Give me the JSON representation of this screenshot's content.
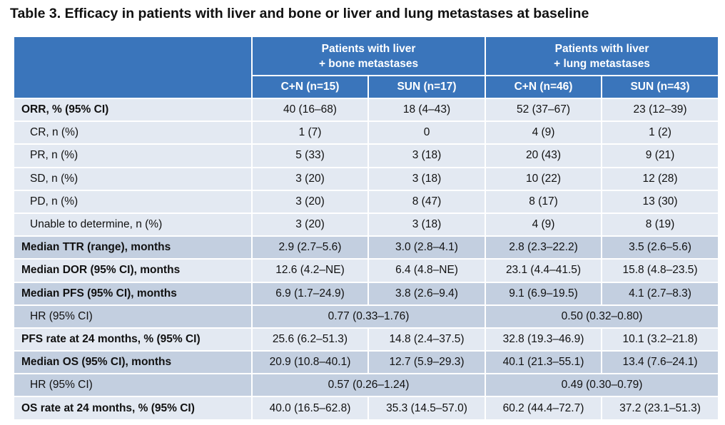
{
  "title": "Table 3. Efficacy in patients with liver and bone or liver and lung metastases at baseline",
  "header": {
    "group1_line1": "Patients with liver",
    "group1_line2": "+ bone metastases",
    "group2_line1": "Patients with liver",
    "group2_line2": "+ lung metastases",
    "columns": [
      "C+N (n=15)",
      "SUN (n=17)",
      "C+N (n=46)",
      "SUN (n=43)"
    ]
  },
  "rows": [
    {
      "label": "ORR, % (95% CI)",
      "values": [
        "40 (16–68)",
        "18 (4–43)",
        "52 (37–67)",
        "23 (12–39)"
      ]
    },
    {
      "label": "CR, n (%)",
      "values": [
        "1 (7)",
        "0",
        "4 (9)",
        "1 (2)"
      ]
    },
    {
      "label": "PR, n (%)",
      "values": [
        "5 (33)",
        "3 (18)",
        "20 (43)",
        "9 (21)"
      ]
    },
    {
      "label": "SD, n (%)",
      "values": [
        "3 (20)",
        "3 (18)",
        "10 (22)",
        "12 (28)"
      ]
    },
    {
      "label": "PD, n (%)",
      "values": [
        "3 (20)",
        "8 (47)",
        "8 (17)",
        "13 (30)"
      ]
    },
    {
      "label": "Unable to determine, n (%)",
      "values": [
        "3 (20)",
        "3 (18)",
        "4 (9)",
        "8 (19)"
      ]
    },
    {
      "label": "Median TTR (range), months",
      "values": [
        "2.9 (2.7–5.6)",
        "3.0 (2.8–4.1)",
        "2.8 (2.3–22.2)",
        "3.5 (2.6–5.6)"
      ]
    },
    {
      "label": "Median DOR (95% CI), months",
      "values": [
        "12.6 (4.2–NE)",
        "6.4 (4.8–NE)",
        "23.1 (4.4–41.5)",
        "15.8 (4.8–23.5)"
      ]
    },
    {
      "label": "Median PFS (95% CI), months",
      "values": [
        "6.9 (1.7–24.9)",
        "3.8 (2.6–9.4)",
        "9.1 (6.9–19.5)",
        "4.1 (2.7–8.3)"
      ]
    },
    {
      "label": "HR (95% CI)",
      "values": [
        "0.77 (0.33–1.76)",
        "0.50 (0.32–0.80)"
      ]
    },
    {
      "label": "PFS rate at 24 months, % (95% CI)",
      "values": [
        "25.6 (6.2–51.3)",
        "14.8 (2.4–37.5)",
        "32.8 (19.3–46.9)",
        "10.1 (3.2–21.8)"
      ]
    },
    {
      "label": "Median OS (95% CI), months",
      "values": [
        "20.9 (10.8–40.1)",
        "12.7 (5.9–29.3)",
        "40.1 (21.3–55.1)",
        "13.4  (7.6–24.1)"
      ]
    },
    {
      "label": "HR (95% CI)",
      "values": [
        "0.57 (0.26–1.24)",
        "0.49 (0.30–0.79)"
      ]
    },
    {
      "label": "OS rate at 24 months, % (95% CI)",
      "values": [
        "40.0 (16.5–62.8)",
        "35.3 (14.5–57.0)",
        "60.2 (44.4–72.7)",
        "37.2 (23.1–51.3)"
      ]
    }
  ],
  "colors": {
    "header_bg": "#3a75bb",
    "header_text": "#ffffff",
    "row_light": "#e3e9f2",
    "row_dark": "#c3cfe0"
  }
}
